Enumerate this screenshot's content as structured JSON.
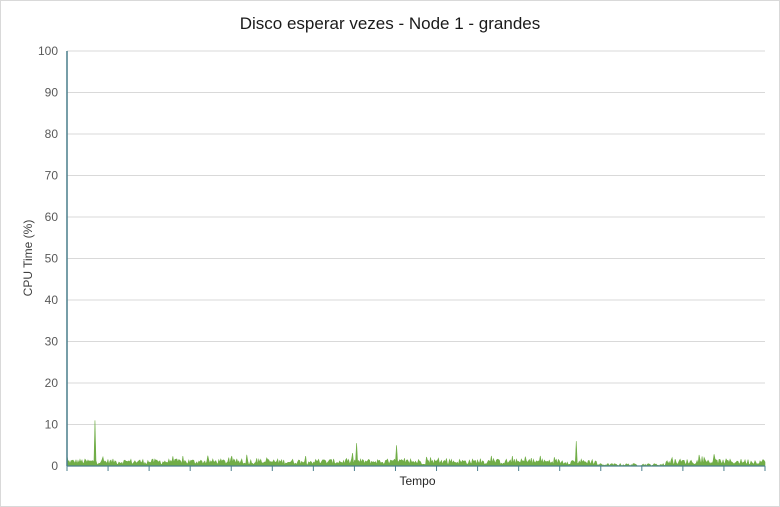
{
  "chart_data": {
    "type": "area",
    "title": "Disco esperar vezes - Node 1 - grandes",
    "xlabel": "Tempo",
    "ylabel": "CPU Time (%)",
    "ylim": [
      0,
      100
    ],
    "yticks": [
      "0",
      "10",
      "20",
      "30",
      "40",
      "50",
      "60",
      "70",
      "80",
      "90",
      "100"
    ],
    "grid": true,
    "legend": "none",
    "series_color": "#70ad47",
    "axis_color": "#4a7f8c",
    "approx_mean": 1.2,
    "approx_max": 11,
    "samples": 700,
    "peaks": [
      {
        "index": 0,
        "value": 2.5
      },
      {
        "index": 28,
        "value": 11
      },
      {
        "index": 290,
        "value": 5.5
      },
      {
        "index": 330,
        "value": 5.0
      },
      {
        "index": 510,
        "value": 6.0
      }
    ]
  }
}
